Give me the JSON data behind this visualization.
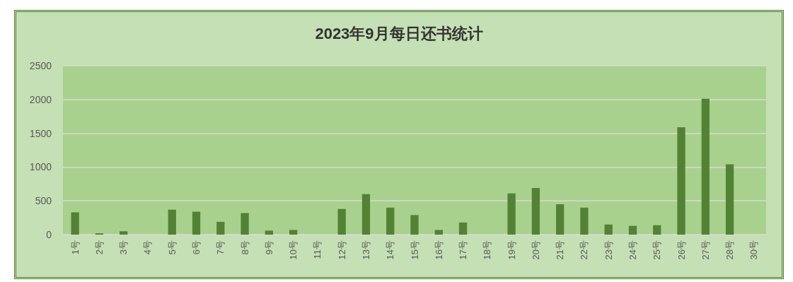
{
  "chart_data": {
    "type": "bar",
    "title": "2023年9月每日还书统计",
    "categories": [
      "1号",
      "2号",
      "3号",
      "4号",
      "5号",
      "6号",
      "7号",
      "8号",
      "9号",
      "10号",
      "11号",
      "12号",
      "13号",
      "14号",
      "15号",
      "16号",
      "17号",
      "18号",
      "19号",
      "20号",
      "21号",
      "22号",
      "23号",
      "24号",
      "25号",
      "26号",
      "27号",
      "28号",
      "30号"
    ],
    "values": [
      330,
      20,
      50,
      0,
      370,
      340,
      190,
      320,
      60,
      70,
      0,
      380,
      600,
      400,
      290,
      70,
      180,
      0,
      610,
      690,
      450,
      400,
      150,
      130,
      140,
      1590,
      2010,
      1040,
      0
    ],
    "color": "#548235",
    "ylim": [
      0,
      2500
    ],
    "yticks": [
      0,
      500,
      1000,
      1500,
      2000,
      2500
    ],
    "grid": "y"
  }
}
